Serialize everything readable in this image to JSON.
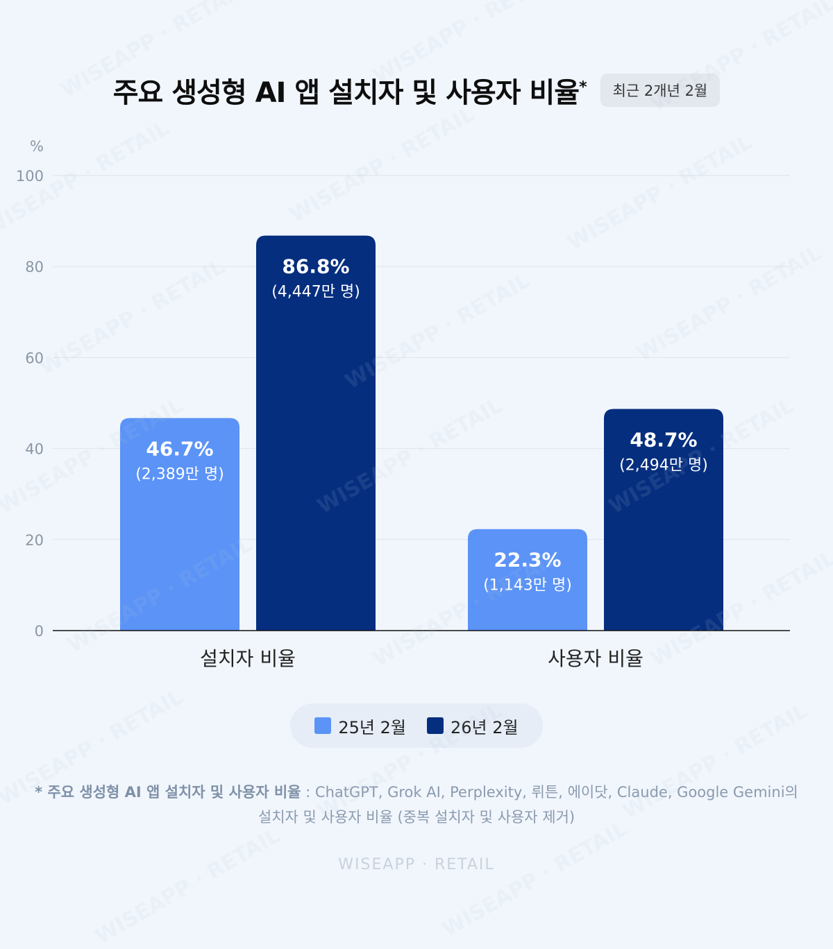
{
  "title": "주요 생성형 AI 앱 설치자 및 사용자 비율",
  "title_mark": "*",
  "badge": "최근 2개년 2월",
  "footnote": {
    "lead": "* 주요 생성형 AI 앱 설치자 및 사용자 비율",
    "line1_rest": " : ChatGPT, Grok AI, Perplexity, 뤼튼, 에이닷, Claude, Google Gemini의",
    "line2": "설치자 및 사용자 비율 (중복 설치자 및 사용자 제거)"
  },
  "brand": "WISEAPP · RETAIL",
  "watermark_text": "WISEAPP · RETAIL",
  "colors": {
    "series1": "#5b93f7",
    "series2": "#052e7f",
    "grid": "#dde3ea",
    "axis": "#111111"
  },
  "chart_data": {
    "type": "bar",
    "categories": [
      "설치자 비율",
      "사용자 비율"
    ],
    "series": [
      {
        "name": "25년 2월",
        "values": [
          46.7,
          22.3
        ],
        "labels": [
          "46.7%",
          "22.3%"
        ],
        "sublabels": [
          "(2,389만 명)",
          "(1,143만 명)"
        ]
      },
      {
        "name": "26년 2월",
        "values": [
          86.8,
          48.7
        ],
        "labels": [
          "86.8%",
          "48.7%"
        ],
        "sublabels": [
          "(4,447만 명)",
          "(2,494만 명)"
        ]
      }
    ],
    "yunit": "%",
    "ylim": [
      0,
      100
    ],
    "yticks": [
      0,
      20,
      40,
      60,
      80,
      100
    ],
    "grid": true,
    "legend": "bottom-center"
  }
}
